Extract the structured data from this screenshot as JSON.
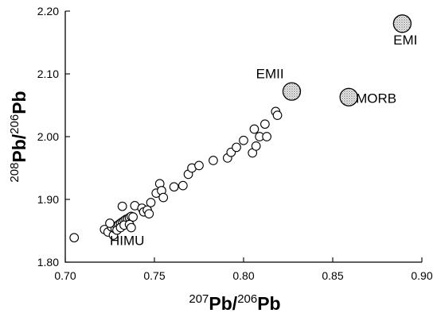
{
  "chart_data": {
    "type": "scatter",
    "xlim": [
      0.7,
      0.9
    ],
    "ylim": [
      1.8,
      2.2
    ],
    "x_ticks": [
      "0.70",
      "0.75",
      "0.80",
      "0.85",
      "0.90"
    ],
    "y_ticks": [
      "1.80",
      "1.90",
      "2.00",
      "2.10",
      "2.20"
    ],
    "x_tick_values": [
      0.7,
      0.75,
      0.8,
      0.85,
      0.9
    ],
    "y_tick_values": [
      1.8,
      1.9,
      2.0,
      2.1,
      2.2
    ],
    "xlabel": {
      "sup1": "207",
      "base1": "Pb/",
      "sup2": "206",
      "base2": "Pb"
    },
    "ylabel": {
      "sup1": "208",
      "base1": "Pb/",
      "sup2": "206",
      "base2": "Pb"
    },
    "grid": false,
    "points": [
      {
        "x": 0.705,
        "y": 1.839
      },
      {
        "x": 0.722,
        "y": 1.852
      },
      {
        "x": 0.724,
        "y": 1.848
      },
      {
        "x": 0.726,
        "y": 1.856
      },
      {
        "x": 0.727,
        "y": 1.843
      },
      {
        "x": 0.728,
        "y": 1.853
      },
      {
        "x": 0.729,
        "y": 1.858
      },
      {
        "x": 0.73,
        "y": 1.86
      },
      {
        "x": 0.731,
        "y": 1.862
      },
      {
        "x": 0.732,
        "y": 1.864
      },
      {
        "x": 0.733,
        "y": 1.866
      },
      {
        "x": 0.734,
        "y": 1.868
      },
      {
        "x": 0.735,
        "y": 1.869
      },
      {
        "x": 0.736,
        "y": 1.871
      },
      {
        "x": 0.737,
        "y": 1.873
      },
      {
        "x": 0.738,
        "y": 1.872
      },
      {
        "x": 0.729,
        "y": 1.851
      },
      {
        "x": 0.731,
        "y": 1.855
      },
      {
        "x": 0.733,
        "y": 1.859
      },
      {
        "x": 0.725,
        "y": 1.862
      },
      {
        "x": 0.736,
        "y": 1.86
      },
      {
        "x": 0.737,
        "y": 1.855
      },
      {
        "x": 0.732,
        "y": 1.889
      },
      {
        "x": 0.739,
        "y": 1.89
      },
      {
        "x": 0.743,
        "y": 1.886
      },
      {
        "x": 0.744,
        "y": 1.88
      },
      {
        "x": 0.746,
        "y": 1.883
      },
      {
        "x": 0.747,
        "y": 1.877
      },
      {
        "x": 0.748,
        "y": 1.895
      },
      {
        "x": 0.751,
        "y": 1.91
      },
      {
        "x": 0.753,
        "y": 1.925
      },
      {
        "x": 0.754,
        "y": 1.914
      },
      {
        "x": 0.755,
        "y": 1.903
      },
      {
        "x": 0.761,
        "y": 1.92
      },
      {
        "x": 0.766,
        "y": 1.922
      },
      {
        "x": 0.769,
        "y": 1.94
      },
      {
        "x": 0.771,
        "y": 1.95
      },
      {
        "x": 0.775,
        "y": 1.954
      },
      {
        "x": 0.783,
        "y": 1.962
      },
      {
        "x": 0.791,
        "y": 1.966
      },
      {
        "x": 0.793,
        "y": 1.975
      },
      {
        "x": 0.796,
        "y": 1.983
      },
      {
        "x": 0.8,
        "y": 1.994
      },
      {
        "x": 0.805,
        "y": 1.974
      },
      {
        "x": 0.806,
        "y": 2.012
      },
      {
        "x": 0.807,
        "y": 1.985
      },
      {
        "x": 0.809,
        "y": 2.0
      },
      {
        "x": 0.812,
        "y": 2.02
      },
      {
        "x": 0.813,
        "y": 2.0
      },
      {
        "x": 0.818,
        "y": 2.04
      },
      {
        "x": 0.819,
        "y": 2.034
      }
    ],
    "end_members": [
      {
        "label": "EMI",
        "x": 0.889,
        "y": 2.18
      },
      {
        "label": "EMII",
        "x": 0.827,
        "y": 2.072
      },
      {
        "label": "MORB",
        "x": 0.859,
        "y": 2.063
      }
    ],
    "annotations": [
      {
        "text": "EMI",
        "x": 0.884,
        "y": 2.147
      },
      {
        "text": "EMII",
        "x": 0.807,
        "y": 2.093
      },
      {
        "text": "MORB",
        "x": 0.863,
        "y": 2.054
      },
      {
        "text": "HIMU",
        "x": 0.725,
        "y": 1.827
      }
    ]
  }
}
